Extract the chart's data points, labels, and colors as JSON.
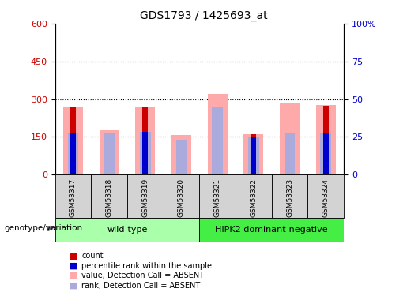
{
  "title": "GDS1793 / 1425693_at",
  "samples": [
    "GSM53317",
    "GSM53318",
    "GSM53319",
    "GSM53320",
    "GSM53321",
    "GSM53322",
    "GSM53323",
    "GSM53324"
  ],
  "count_values": [
    270,
    0,
    270,
    0,
    0,
    160,
    0,
    275
  ],
  "rank_values": [
    165,
    0,
    170,
    0,
    0,
    148,
    0,
    165
  ],
  "pink_value_values": [
    270,
    175,
    270,
    157,
    320,
    160,
    285,
    278
  ],
  "pink_rank_values": [
    165,
    165,
    170,
    140,
    268,
    148,
    168,
    165
  ],
  "left_yticks": [
    0,
    150,
    300,
    450,
    600
  ],
  "ylim": [
    0,
    600
  ],
  "color_count": "#cc0000",
  "color_rank": "#0000cc",
  "color_pink_value": "#ffaaaa",
  "color_pink_rank": "#aaaadd",
  "group1_label": "wild-type",
  "group2_label": "HIPK2 dominant-negative",
  "group1_color": "#aaffaa",
  "group2_color": "#44ee44",
  "genotype_label": "genotype/variation",
  "legend_items": [
    {
      "color": "#cc0000",
      "label": "count"
    },
    {
      "color": "#0000cc",
      "label": "percentile rank within the sample"
    },
    {
      "color": "#ffaaaa",
      "label": "value, Detection Call = ABSENT"
    },
    {
      "color": "#aaaadd",
      "label": "rank, Detection Call = ABSENT"
    }
  ]
}
